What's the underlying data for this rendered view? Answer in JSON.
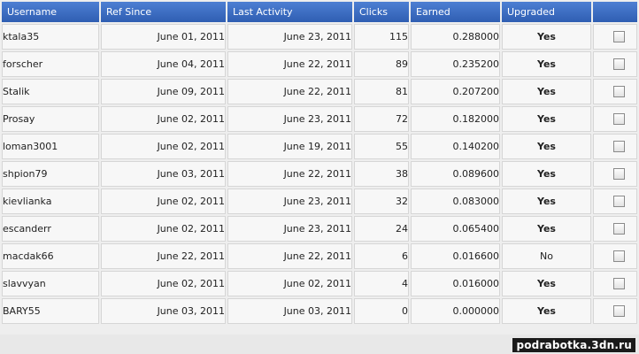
{
  "table": {
    "headers": {
      "username": "Username",
      "ref_since": "Ref Since",
      "last_activity": "Last Activity",
      "clicks": "Clicks",
      "earned": "Earned",
      "upgraded": "Upgraded",
      "select": ""
    },
    "rows": [
      {
        "username": "ktala35",
        "ref_since": "June 01, 2011",
        "last_activity": "June 23, 2011",
        "clicks": "115",
        "earned": "0.288000",
        "upgraded": "Yes"
      },
      {
        "username": "forscher",
        "ref_since": "June 04, 2011",
        "last_activity": "June 22, 2011",
        "clicks": "89",
        "earned": "0.235200",
        "upgraded": "Yes"
      },
      {
        "username": "Stalik",
        "ref_since": "June 09, 2011",
        "last_activity": "June 22, 2011",
        "clicks": "81",
        "earned": "0.207200",
        "upgraded": "Yes"
      },
      {
        "username": "Prosay",
        "ref_since": "June 02, 2011",
        "last_activity": "June 23, 2011",
        "clicks": "72",
        "earned": "0.182000",
        "upgraded": "Yes"
      },
      {
        "username": "loman3001",
        "ref_since": "June 02, 2011",
        "last_activity": "June 19, 2011",
        "clicks": "55",
        "earned": "0.140200",
        "upgraded": "Yes"
      },
      {
        "username": "shpion79",
        "ref_since": "June 03, 2011",
        "last_activity": "June 22, 2011",
        "clicks": "38",
        "earned": "0.089600",
        "upgraded": "Yes"
      },
      {
        "username": "kievlianka",
        "ref_since": "June 02, 2011",
        "last_activity": "June 23, 2011",
        "clicks": "32",
        "earned": "0.083000",
        "upgraded": "Yes"
      },
      {
        "username": "escanderr",
        "ref_since": "June 02, 2011",
        "last_activity": "June 23, 2011",
        "clicks": "24",
        "earned": "0.065400",
        "upgraded": "Yes"
      },
      {
        "username": "macdak66",
        "ref_since": "June 22, 2011",
        "last_activity": "June 22, 2011",
        "clicks": "6",
        "earned": "0.016600",
        "upgraded": "No"
      },
      {
        "username": "slavvyan",
        "ref_since": "June 02, 2011",
        "last_activity": "June 02, 2011",
        "clicks": "4",
        "earned": "0.016000",
        "upgraded": "Yes"
      },
      {
        "username": "BARY55",
        "ref_since": "June 03, 2011",
        "last_activity": "June 03, 2011",
        "clicks": "0",
        "earned": "0.000000",
        "upgraded": "Yes"
      }
    ]
  },
  "watermark": "podrabotka.3dn.ru",
  "colors": {
    "header_bg": "#3f6ec2",
    "header_text": "#ffffff",
    "cell_bg": "#f7f7f7"
  }
}
